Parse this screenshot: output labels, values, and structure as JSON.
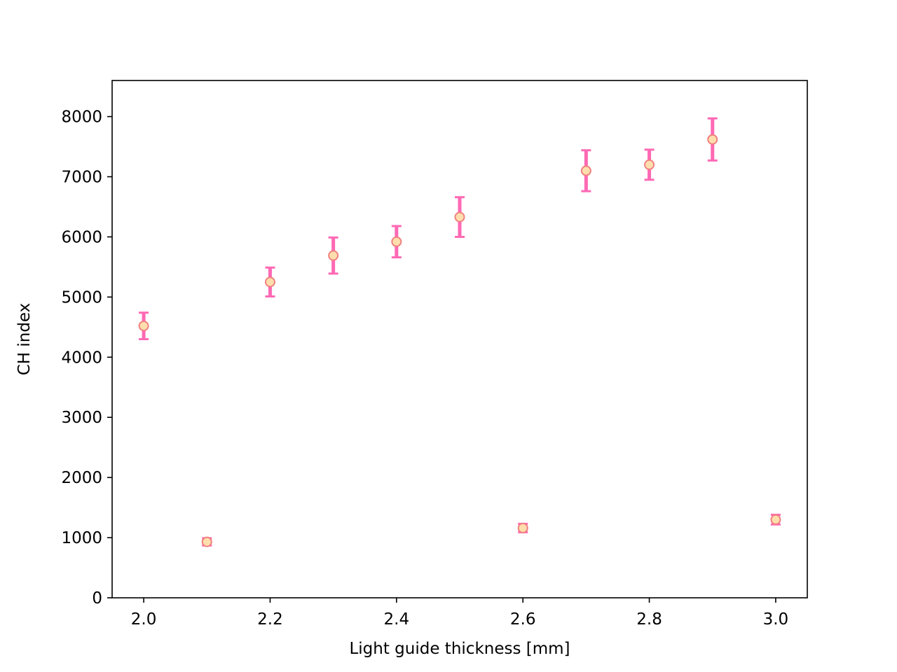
{
  "chart_data": {
    "type": "scatter",
    "title": "",
    "xlabel": "Light guide thickness [mm]",
    "ylabel": "CH index",
    "xlim": [
      1.95,
      3.05
    ],
    "ylim": [
      0,
      8600
    ],
    "xticks": [
      2.0,
      2.2,
      2.4,
      2.6,
      2.8,
      3.0
    ],
    "xtick_labels": [
      "2.0",
      "2.2",
      "2.4",
      "2.6",
      "2.8",
      "3.0"
    ],
    "yticks": [
      0,
      1000,
      2000,
      3000,
      4000,
      5000,
      6000,
      7000,
      8000
    ],
    "ytick_labels": [
      "0",
      "1000",
      "2000",
      "3000",
      "4000",
      "5000",
      "6000",
      "7000",
      "8000"
    ],
    "grid": false,
    "legend": "none",
    "series": [
      {
        "x": [
          2.0,
          2.1,
          2.2,
          2.3,
          2.4,
          2.5,
          2.6,
          2.7,
          2.8,
          2.9,
          3.0
        ],
        "y": [
          4520,
          930,
          5250,
          5690,
          5920,
          6330,
          1160,
          7100,
          7200,
          7620,
          1300
        ],
        "yerr": [
          220,
          60,
          240,
          300,
          260,
          330,
          70,
          340,
          250,
          350,
          80
        ]
      }
    ],
    "colors": {
      "errorbar": "#ff69b4",
      "marker_face": "#ffdead",
      "marker_edge": "#f08080",
      "axes": "#000000"
    }
  }
}
